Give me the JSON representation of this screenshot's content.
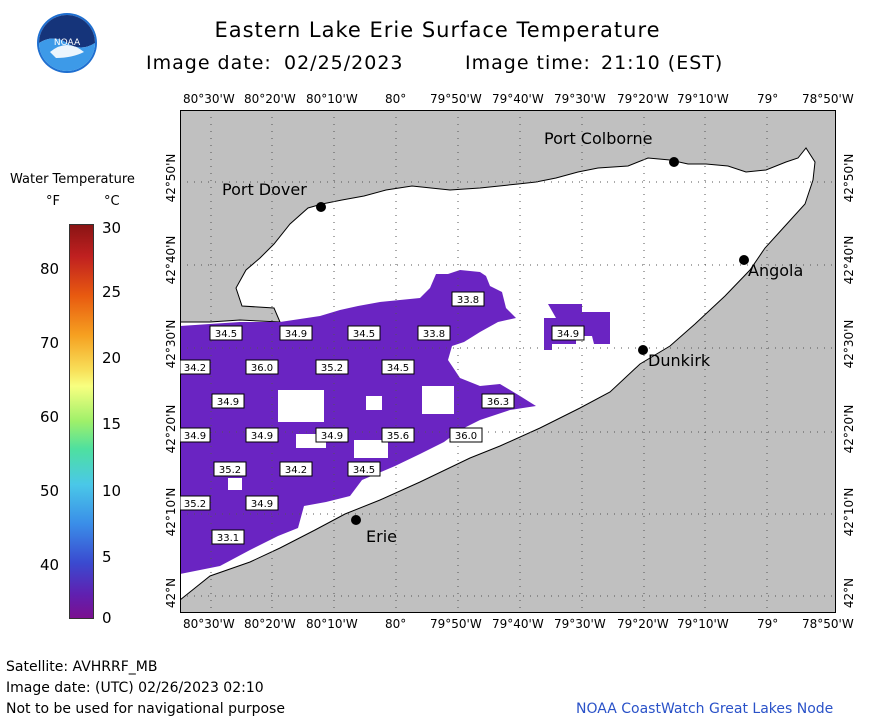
{
  "header": {
    "title": "Eastern Lake Erie Surface Temperature",
    "image_date_label": "Image date:",
    "image_date": "02/25/2023",
    "image_time_label": "Image time:",
    "image_time": "21:10 (EST)"
  },
  "logo": {
    "text": "NOAA"
  },
  "map": {
    "lon_labels": [
      "80°30'W",
      "80°20'W",
      "80°10'W",
      "80°",
      "79°50'W",
      "79°40'W",
      "79°30'W",
      "79°20'W",
      "79°10'W",
      "79°",
      "78°50'W"
    ],
    "lat_labels": [
      "42°50'N",
      "42°40'N",
      "42°30'N",
      "42°20'N",
      "42°10'N",
      "42°N"
    ],
    "cities": [
      {
        "name": "Port Colborne"
      },
      {
        "name": "Port Dover"
      },
      {
        "name": "Angola"
      },
      {
        "name": "Dunkirk"
      },
      {
        "name": "Erie"
      }
    ],
    "temp_labels": [
      "33.8",
      "34.5",
      "34.9",
      "34.5",
      "33.8",
      "34.9",
      "34.2",
      "36.0",
      "35.2",
      "34.5",
      "34.9",
      "36.3",
      "34.9",
      "34.9",
      "34.9",
      "35.6",
      "36.0",
      "35.2",
      "34.2",
      "34.5",
      "35.2",
      "34.9",
      "33.1"
    ],
    "colors": {
      "land": "#c0c0c0",
      "water_nodata": "#ffffff",
      "water_cold": "#6a22c0",
      "grid": "#666666"
    }
  },
  "legend": {
    "title": "Water Temperature",
    "f_unit": "°F",
    "c_unit": "°C",
    "f_ticks": [
      "80",
      "70",
      "60",
      "50",
      "40"
    ],
    "c_ticks": [
      "30",
      "25",
      "20",
      "15",
      "10",
      "5",
      "0"
    ]
  },
  "footer": {
    "satellite": "Satellite: AVHRRF_MB",
    "utc_date": "Image date: (UTC) 02/26/2023  02:10",
    "disclaimer": "Not to be used for navigational purpose",
    "credit": "NOAA CoastWatch Great Lakes Node"
  }
}
